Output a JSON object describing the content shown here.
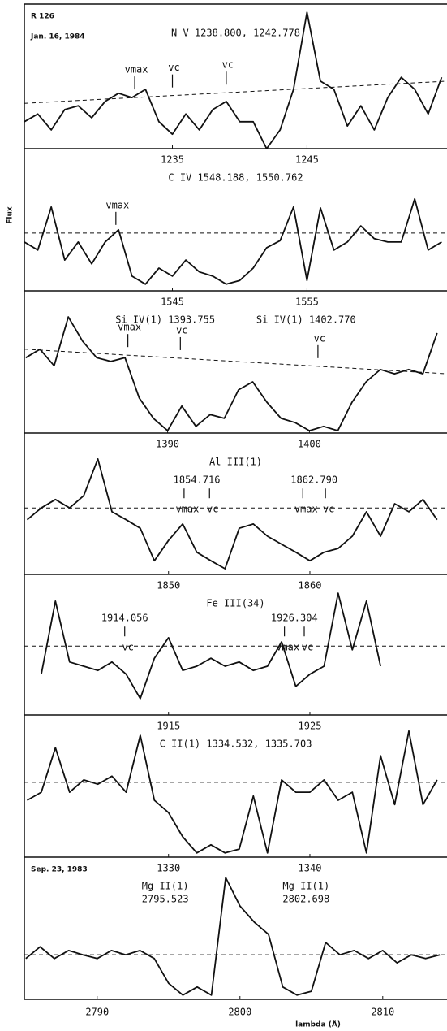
{
  "figure": {
    "object": "R 126",
    "date_top": "Jan. 16, 1984",
    "date_bottom": "Sep. 23, 1983",
    "y_label": "Flux",
    "x_label": "lambda (Å)"
  },
  "chart_data": [
    {
      "type": "line",
      "title": [
        [
          "N V 1238.800, 1242.778"
        ]
      ],
      "x": [
        1224,
        1225,
        1226,
        1227,
        1228,
        1229,
        1230,
        1231,
        1232,
        1233,
        1234,
        1235,
        1236,
        1237,
        1238,
        1239,
        1240,
        1241,
        1242,
        1243,
        1244,
        1245,
        1246,
        1247,
        1248,
        1249,
        1250,
        1251,
        1252,
        1253,
        1254,
        1255
      ],
      "values": [
        0.56,
        0.72,
        0.39,
        0.81,
        0.89,
        0.64,
        0.98,
        1.15,
        1.06,
        1.23,
        0.56,
        0.3,
        0.72,
        0.39,
        0.81,
        0.98,
        0.56,
        0.56,
        0,
        0.39,
        1.23,
        2.83,
        1.4,
        1.23,
        0.47,
        0.89,
        0.39,
        1.06,
        1.48,
        1.23,
        0.72,
        1.48
      ],
      "xlim": [
        1224,
        1255.4
      ],
      "xticks": [
        1235,
        1245
      ],
      "ylim": [
        0,
        3
      ],
      "continuum": [
        0.94,
        1.4
      ],
      "marker_side": "above",
      "markers": [
        {
          "ticks": [
            {
              "label": "vmax",
              "x": 1232.2
            },
            {
              "label": "vc",
              "x": 1235.0
            },
            {
              "label": "vc",
              "x": 1239.0
            }
          ]
        }
      ]
    },
    {
      "type": "line",
      "title": [
        [
          "C IV 1548.188, 1550.762"
        ]
      ],
      "x": [
        1534,
        1535,
        1536,
        1537,
        1538,
        1539,
        1540,
        1541,
        1542,
        1543,
        1544,
        1545,
        1546,
        1547,
        1548,
        1549,
        1550,
        1551,
        1552,
        1553,
        1554,
        1555,
        1556,
        1557,
        1558,
        1559,
        1560,
        1561,
        1562,
        1563,
        1564,
        1565
      ],
      "values": [
        1.03,
        0.86,
        1.77,
        0.65,
        1.03,
        0.57,
        1.03,
        1.29,
        0.31,
        0.14,
        0.48,
        0.31,
        0.65,
        0.4,
        0.31,
        0.14,
        0.22,
        0.48,
        0.91,
        1.06,
        1.77,
        0.22,
        1.75,
        0.86,
        1.03,
        1.37,
        1.1,
        1.03,
        1.03,
        1.94,
        0.86,
        1.03
      ],
      "xlim": [
        1534,
        1565.4
      ],
      "xticks": [
        1545,
        1555
      ],
      "ylim": [
        0,
        3
      ],
      "continuum": [
        1.22,
        1.22
      ],
      "marker_side": "above",
      "markers": [
        {
          "ticks": [
            {
              "label": "vmax",
              "x": 1540.8
            }
          ]
        }
      ]
    },
    {
      "type": "line",
      "title": [
        [
          "Si IV(1) 1393.755"
        ],
        [
          "Si IV(1) 1402.770"
        ]
      ],
      "x": [
        1380,
        1381,
        1382,
        1383,
        1384,
        1385,
        1386,
        1387,
        1388,
        1389,
        1390,
        1391,
        1392,
        1393,
        1394,
        1395,
        1396,
        1397,
        1398,
        1399,
        1400,
        1401,
        1402,
        1403,
        1404,
        1405,
        1406,
        1407,
        1408,
        1409
      ],
      "values": [
        1.59,
        1.77,
        1.42,
        2.45,
        1.94,
        1.59,
        1.51,
        1.59,
        0.74,
        0.31,
        0.05,
        0.57,
        0.14,
        0.39,
        0.31,
        0.91,
        1.08,
        0.65,
        0.31,
        0.22,
        0.05,
        0.14,
        0.05,
        0.65,
        1.08,
        1.34,
        1.25,
        1.34,
        1.25,
        2.11
      ],
      "xlim": [
        1379.9,
        1409.7
      ],
      "xticks": [
        1390,
        1400
      ],
      "ylim": [
        0,
        3
      ],
      "continuum": [
        1.77,
        1.25
      ],
      "marker_side": "above",
      "markers": [
        {
          "ticks": [
            {
              "label": "vmax",
              "x": 1387.2
            },
            {
              "label": "vc",
              "x": 1390.9
            },
            {
              "label": "vc",
              "x": 1400.6
            }
          ]
        }
      ]
    },
    {
      "type": "line",
      "title": [
        [
          "Al III(1)"
        ]
      ],
      "x": [
        1840,
        1841,
        1842,
        1843,
        1844,
        1845,
        1846,
        1847,
        1848,
        1849,
        1850,
        1851,
        1852,
        1853,
        1854,
        1855,
        1856,
        1857,
        1858,
        1859,
        1860,
        1861,
        1862,
        1863,
        1864,
        1865,
        1866,
        1867,
        1868,
        1869
      ],
      "values": [
        1.16,
        1.41,
        1.59,
        1.41,
        1.67,
        2.45,
        1.33,
        1.16,
        0.98,
        0.29,
        0.72,
        1.07,
        0.47,
        0.29,
        0.12,
        0.98,
        1.07,
        0.81,
        0.64,
        0.47,
        0.29,
        0.47,
        0.55,
        0.81,
        1.33,
        0.81,
        1.5,
        1.33,
        1.59,
        1.16
      ],
      "xlim": [
        1839.8,
        1869.7
      ],
      "xticks": [
        1850,
        1860
      ],
      "ylim": [
        0,
        3
      ],
      "continuum": [
        1.41,
        1.41
      ],
      "marker_side": "below",
      "markers": [
        {
          "label": "1854.716",
          "ticks": [
            {
              "label": "vmax",
              "x": 1851.1
            },
            {
              "label": "vc",
              "x": 1852.9
            }
          ]
        },
        {
          "label": "1862.790",
          "ticks": [
            {
              "label": "vmax",
              "x": 1859.5
            },
            {
              "label": "vc",
              "x": 1861.1
            }
          ]
        }
      ]
    },
    {
      "type": "line",
      "title": [
        [
          "Fe III(34)"
        ]
      ],
      "x": [
        1906,
        1907,
        1908,
        1909,
        1910,
        1911,
        1912,
        1913,
        1914,
        1915,
        1916,
        1917,
        1918,
        1919,
        1920,
        1921,
        1922,
        1923,
        1924,
        1925,
        1926,
        1927,
        1928,
        1929,
        1930
      ],
      "values": [
        0.87,
        2.43,
        1.13,
        1.04,
        0.95,
        1.13,
        0.87,
        0.35,
        1.21,
        1.65,
        0.95,
        1.04,
        1.21,
        1.04,
        1.13,
        0.95,
        1.04,
        1.56,
        0.61,
        0.87,
        1.04,
        2.6,
        1.39,
        2.43,
        1.04
      ],
      "xlim": [
        1904.8,
        1934.7
      ],
      "xticks": [
        1915,
        1925
      ],
      "ylim": [
        0,
        3
      ],
      "continuum": [
        1.47,
        1.47
      ],
      "marker_side": "below",
      "markers": [
        {
          "label": "1914.056",
          "ticks": [
            {
              "label": "vc",
              "x": 1911.9
            }
          ]
        },
        {
          "label": "1926.304",
          "ticks": [
            {
              "label": "vmax",
              "x": 1923.2
            },
            {
              "label": "vc",
              "x": 1924.6
            }
          ]
        }
      ]
    },
    {
      "type": "line",
      "title": [
        [
          "C II(1) 1334.532, 1335.703"
        ]
      ],
      "x": [
        1320,
        1321,
        1322,
        1323,
        1324,
        1325,
        1326,
        1327,
        1328,
        1329,
        1330,
        1331,
        1332,
        1333,
        1334,
        1335,
        1336,
        1337,
        1338,
        1339,
        1340,
        1341,
        1342,
        1343,
        1344,
        1345,
        1346,
        1347,
        1348,
        1349
      ],
      "values": [
        1.2,
        1.37,
        2.31,
        1.37,
        1.63,
        1.54,
        1.71,
        1.37,
        2.57,
        1.2,
        0.94,
        0.43,
        0.09,
        0.26,
        0.09,
        0.17,
        1.29,
        0.09,
        1.63,
        1.37,
        1.37,
        1.63,
        1.2,
        1.37,
        0.09,
        2.14,
        1.11,
        2.66,
        1.11,
        1.63
      ],
      "xlim": [
        1319.8,
        1349.7
      ],
      "xticks": [
        1330,
        1340
      ],
      "ylim": [
        0,
        3
      ],
      "continuum": [
        1.58,
        1.58
      ]
    },
    {
      "type": "line",
      "title": [
        [
          "Mg II(1)",
          "2795.523"
        ],
        [
          "Mg II(1)",
          "2802.698"
        ]
      ],
      "x": [
        2785,
        2786,
        2787,
        2788,
        2789,
        2790,
        2791,
        2792,
        2793,
        2794,
        2795,
        2796,
        2797,
        2798,
        2799,
        2800,
        2801,
        2802,
        2803,
        2804,
        2805,
        2806,
        2807,
        2808,
        2809,
        2810,
        2811,
        2812,
        2813,
        2814
      ],
      "values": [
        0.86,
        1.11,
        0.86,
        1.03,
        0.94,
        0.86,
        1.03,
        0.94,
        1.03,
        0.86,
        0.34,
        0.09,
        0.26,
        0.09,
        2.57,
        1.97,
        1.63,
        1.37,
        0.26,
        0.09,
        0.17,
        1.2,
        0.94,
        1.03,
        0.86,
        1.03,
        0.77,
        0.94,
        0.86,
        0.94
      ],
      "xlim": [
        2784.9,
        2814.5
      ],
      "xticks": [
        2790,
        2800,
        2810
      ],
      "ylim": [
        0,
        3
      ],
      "continuum": [
        0.94,
        0.94
      ]
    }
  ]
}
